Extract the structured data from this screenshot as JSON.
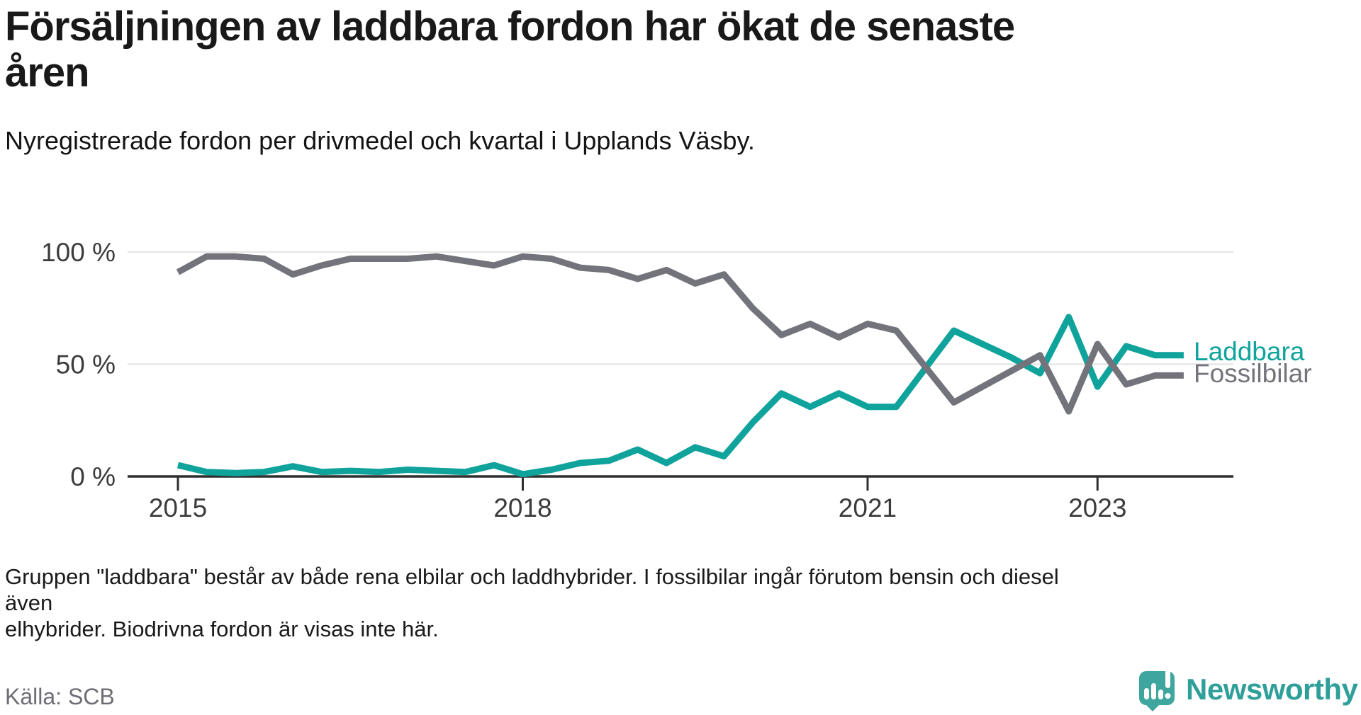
{
  "title": {
    "line1": "Försäljningen av laddbara fordon har ökat de senaste",
    "line2": "åren"
  },
  "subtitle": "Nyregistrerade fordon per drivmedel och kvartal i Upplands Väsby.",
  "footnote": {
    "line1": "Gruppen \"laddbara\" består av både rena elbilar och laddhybrider. I fossilbilar ingår förutom bensin och diesel även",
    "line2": "elhybrider. Biodrivna fordon är visas inte här."
  },
  "source": "Källa: SCB",
  "logo": {
    "text": "Newsworthy",
    "icon": "newsworthy-speech-bubble-chart-icon",
    "text_color": "#2f9f99",
    "icon_color": "#3ea69f"
  },
  "colors": {
    "gridline": "#e7e7e7",
    "axis": "#2f2f2f",
    "tick_label": "#3b3b3b"
  },
  "chart_data": {
    "type": "line",
    "x_unit": "quarter",
    "quarters": [
      "2015 Q1",
      "2015 Q2",
      "2015 Q3",
      "2015 Q4",
      "2016 Q1",
      "2016 Q2",
      "2016 Q3",
      "2016 Q4",
      "2017 Q1",
      "2017 Q2",
      "2017 Q3",
      "2017 Q4",
      "2018 Q1",
      "2018 Q2",
      "2018 Q3",
      "2018 Q4",
      "2019 Q1",
      "2019 Q2",
      "2019 Q3",
      "2019 Q4",
      "2020 Q1",
      "2020 Q2",
      "2020 Q3",
      "2020 Q4",
      "2021 Q1",
      "2021 Q2",
      "2021 Q3",
      "2021 Q4",
      "2022 Q1",
      "2022 Q2",
      "2022 Q3",
      "2022 Q4",
      "2023 Q1",
      "2023 Q2",
      "2023 Q3",
      "2023 Q4"
    ],
    "series": [
      {
        "name": "Laddbara",
        "color": "#0fa39c",
        "values": [
          5,
          2,
          1.5,
          2,
          4.5,
          2,
          2.5,
          2,
          3,
          2.5,
          2,
          5,
          1,
          3,
          6,
          7,
          12,
          6,
          13,
          9,
          24,
          37,
          31,
          37,
          31,
          31,
          48,
          65,
          59,
          53,
          46,
          71,
          40,
          58,
          54,
          54
        ]
      },
      {
        "name": "Fossilbilar",
        "color": "#73737b",
        "values": [
          91,
          98,
          98,
          97,
          90,
          94,
          97,
          97,
          97,
          98,
          96,
          94,
          98,
          97,
          93,
          92,
          88,
          92,
          86,
          90,
          75,
          63,
          68,
          62,
          68,
          65,
          49,
          33,
          40,
          47,
          54,
          29,
          59,
          41,
          45,
          45
        ]
      }
    ],
    "y_ticks": [
      {
        "label": "0 %",
        "value": 0
      },
      {
        "label": "50 %",
        "value": 50
      },
      {
        "label": "100 %",
        "value": 100
      }
    ],
    "x_ticks": [
      {
        "label": "2015",
        "index": 0
      },
      {
        "label": "2018",
        "index": 12
      },
      {
        "label": "2021",
        "index": 24
      },
      {
        "label": "2023",
        "index": 32
      }
    ],
    "ylim": [
      0,
      100
    ],
    "grid": "horizontal",
    "legend_position": "right-of-line-ends"
  }
}
